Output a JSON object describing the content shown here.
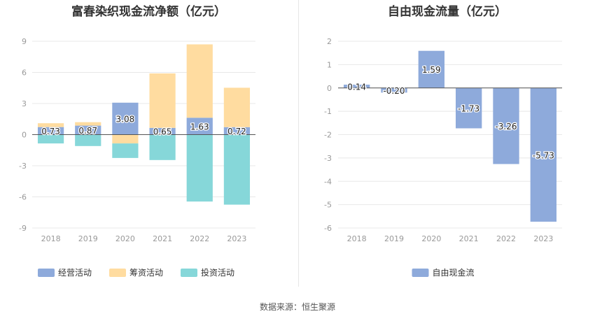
{
  "source_label": "数据来源：恒生聚源",
  "chart_data": [
    {
      "type": "bar",
      "stacked": true,
      "title": "富春染织现金流净额（亿元）",
      "categories": [
        "2018",
        "2019",
        "2020",
        "2021",
        "2022",
        "2023"
      ],
      "ylim": [
        -9,
        9
      ],
      "yticks": [
        9,
        6,
        3,
        0,
        -3,
        -6,
        -9
      ],
      "grid": true,
      "legend_position": "bottom-center",
      "series": [
        {
          "name": "经营活动",
          "color": "#8eaadb",
          "values": [
            0.73,
            0.87,
            3.08,
            0.65,
            1.63,
            0.72
          ],
          "labeled": true
        },
        {
          "name": "筹资活动",
          "color": "#ffdca0",
          "values": [
            0.37,
            0.33,
            -0.85,
            5.25,
            7.07,
            3.8
          ],
          "labeled": false
        },
        {
          "name": "投资活动",
          "color": "#86d7d9",
          "values": [
            -0.85,
            -1.1,
            -1.4,
            -2.45,
            -6.45,
            -6.75
          ],
          "labeled": false
        }
      ]
    },
    {
      "type": "bar",
      "title": "自由现金流量（亿元）",
      "categories": [
        "2018",
        "2019",
        "2020",
        "2021",
        "2022",
        "2023"
      ],
      "ylim": [
        -6,
        2
      ],
      "yticks": [
        2,
        1,
        0,
        -1,
        -2,
        -3,
        -4,
        -5,
        -6
      ],
      "grid": true,
      "legend_position": "bottom-center",
      "series": [
        {
          "name": "自由现金流",
          "color": "#8eaadb",
          "values": [
            0.14,
            -0.2,
            1.59,
            -1.73,
            -3.26,
            -5.73
          ],
          "labeled": true
        }
      ]
    }
  ]
}
